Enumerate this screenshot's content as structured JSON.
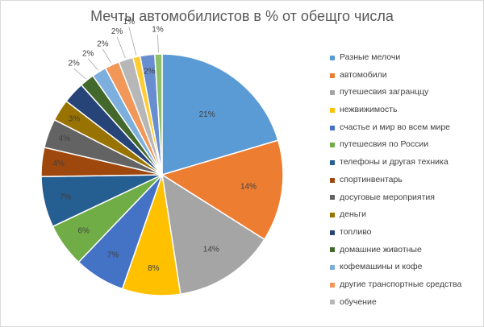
{
  "chart_data": {
    "type": "pie",
    "title": "Мечты автомобилистов в % от обещго числа",
    "legend_position": "right",
    "slices": [
      {
        "name": "Разные мелочи",
        "value": 21,
        "label": "21%",
        "color": "#5b9bd5"
      },
      {
        "name": "автомобили",
        "value": 14,
        "label": "14%",
        "color": "#ed7d31"
      },
      {
        "name": "путешесвия загранццу",
        "value": 14,
        "label": "14%",
        "color": "#a5a5a5"
      },
      {
        "name": "нежвижимость",
        "value": 8,
        "label": "8%",
        "color": "#ffc000"
      },
      {
        "name": "счастье и мир во всем мире",
        "value": 7,
        "label": "7%",
        "color": "#4472c4"
      },
      {
        "name": "путешесвия по России",
        "value": 6,
        "label": "6%",
        "color": "#70ad47"
      },
      {
        "name": "телефоны и другая техника",
        "value": 7,
        "label": "7%",
        "color": "#255e91"
      },
      {
        "name": "спортинвентарь",
        "value": 4,
        "label": "4%",
        "color": "#9e480e"
      },
      {
        "name": "досуговые мероприятия",
        "value": 4,
        "label": "4%",
        "color": "#636363"
      },
      {
        "name": "деньги",
        "value": 3,
        "label": "3%",
        "color": "#997300"
      },
      {
        "name": "топливо",
        "value": 3,
        "label": "",
        "color": "#264478"
      },
      {
        "name": "домашние животные",
        "value": 2,
        "label": "2%",
        "color": "#43682b"
      },
      {
        "name": "кофемашины и кофе",
        "value": 2,
        "label": "2%",
        "color": "#7cafdd"
      },
      {
        "name": "другие транспортные средства",
        "value": 2,
        "label": "2%",
        "color": "#f1975a"
      },
      {
        "name": "обучение",
        "value": 2,
        "label": "2%",
        "color": "#b7b7b7"
      },
      {
        "name": "",
        "value": 1,
        "label": "1%",
        "color": "#ffcd33"
      },
      {
        "name": "",
        "value": 2,
        "label": "2%",
        "color": "#698ed0"
      },
      {
        "name": "",
        "value": 1,
        "label": "1%",
        "color": "#8cc168"
      }
    ]
  }
}
